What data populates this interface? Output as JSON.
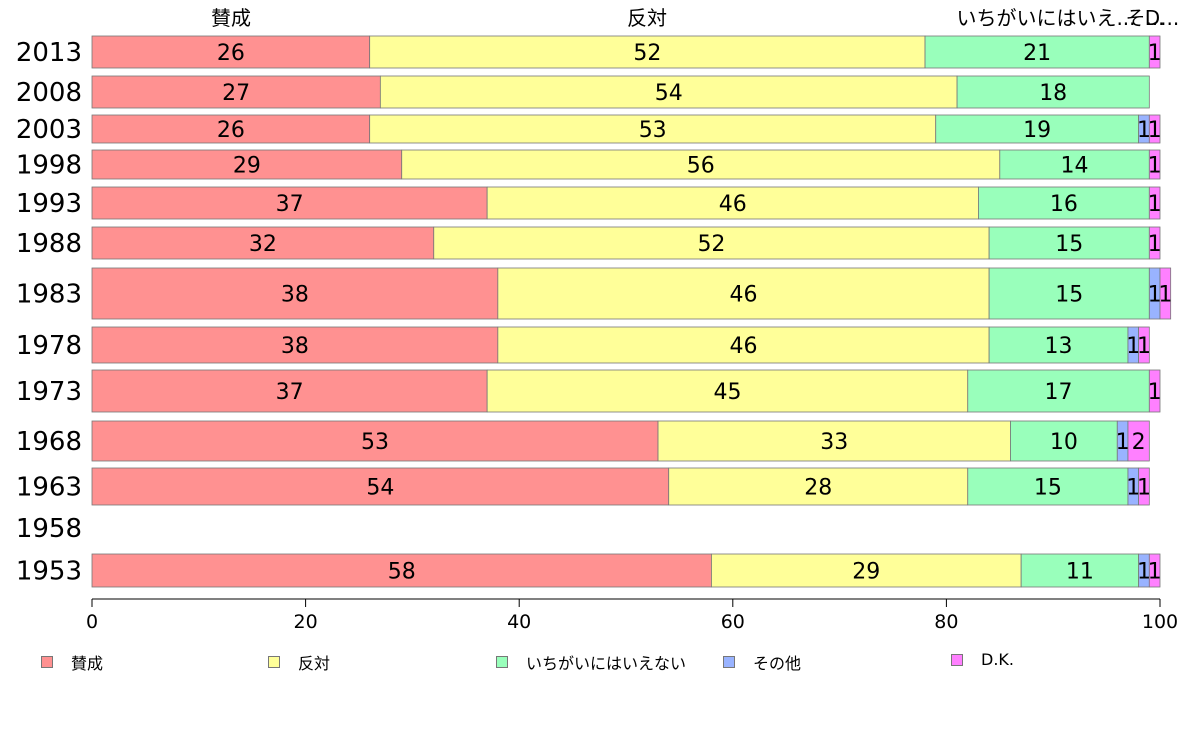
{
  "chart_data": {
    "type": "bar",
    "orientation": "horizontal",
    "stacked": true,
    "title": "",
    "xlabel": "",
    "ylabel": "",
    "xlim": [
      0,
      100
    ],
    "x_ticks": [
      "0",
      "20",
      "40",
      "60",
      "80",
      "100"
    ],
    "grid": false,
    "legend_position": "bottom",
    "categories": [
      "2013",
      "2008",
      "2003",
      "1998",
      "1993",
      "1988",
      "1983",
      "1978",
      "1973",
      "1968",
      "1963",
      "1958",
      "1953"
    ],
    "column_headers": [
      "賛成",
      "反対",
      "いちがいにはいえない",
      "その他",
      "D.K."
    ],
    "series": [
      {
        "name": "賛成",
        "color": "#ff9191",
        "values": [
          26,
          27,
          26,
          29,
          37,
          32,
          38,
          38,
          37,
          53,
          54,
          null,
          58
        ]
      },
      {
        "name": "反対",
        "color": "#ffff99",
        "values": [
          52,
          54,
          53,
          56,
          46,
          52,
          46,
          46,
          45,
          33,
          28,
          null,
          29
        ]
      },
      {
        "name": "いちがいにはいえない",
        "color": "#99ffbb",
        "values": [
          21,
          18,
          19,
          14,
          16,
          15,
          15,
          13,
          17,
          10,
          15,
          null,
          11
        ]
      },
      {
        "name": "その他",
        "color": "#99b3ff",
        "values": [
          0,
          0,
          1,
          0,
          0,
          0,
          1,
          1,
          0,
          1,
          1,
          null,
          1
        ]
      },
      {
        "name": "D.K.",
        "color": "#ff80ff",
        "values": [
          1,
          0,
          1,
          1,
          1,
          1,
          1,
          1,
          1,
          2,
          1,
          null,
          1
        ]
      }
    ],
    "display_values": [
      [
        "26",
        "52",
        "21",
        "",
        "1"
      ],
      [
        "27",
        "54",
        "18",
        "",
        ""
      ],
      [
        "26",
        "53",
        "19",
        "1",
        "1"
      ],
      [
        "29",
        "56",
        "14",
        "",
        "1"
      ],
      [
        "37",
        "46",
        "16",
        "",
        "1"
      ],
      [
        "32",
        "52",
        "15",
        "",
        "1"
      ],
      [
        "38",
        "46",
        "15",
        "1",
        "1"
      ],
      [
        "38",
        "46",
        "13",
        "1",
        "1"
      ],
      [
        "37",
        "45",
        "17",
        "",
        "1"
      ],
      [
        "53",
        "33",
        "10",
        "1",
        "2"
      ],
      [
        "54",
        "28",
        "15",
        "1",
        "1"
      ],
      [
        "",
        "",
        "",
        "",
        ""
      ],
      [
        "58",
        "29",
        "11",
        "1",
        "1"
      ]
    ]
  },
  "header_labels": {
    "col1": "賛成",
    "col2": "反対",
    "col3": "いちがいにはいえ...",
    "col4": "そ...",
    "col5": "D..."
  },
  "legend": [
    {
      "label": "賛成",
      "color": "#ff9191"
    },
    {
      "label": "反対",
      "color": "#ffff99"
    },
    {
      "label": "いちがいにはいえない",
      "color": "#99ffbb"
    },
    {
      "label": "その他",
      "color": "#99b3ff"
    },
    {
      "label": "D.K.",
      "color": "#ff80ff"
    }
  ]
}
